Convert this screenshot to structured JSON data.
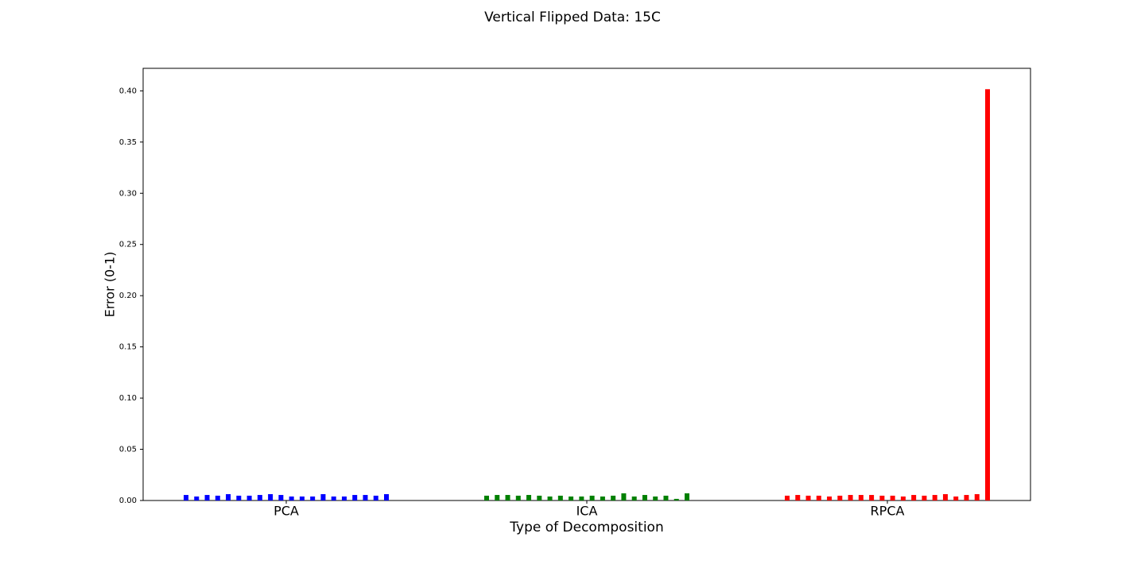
{
  "chart_data": {
    "type": "grouped_bar",
    "title": "Vertical Flipped Data: 15C",
    "xlabel": "Type of Decomposition",
    "ylabel": "Error (0-1)",
    "categories": [
      "PCA",
      "ICA",
      "RPCA"
    ],
    "groups": [
      {
        "color": "#0000ff",
        "values": [
          0.0054,
          0.0039,
          0.0054,
          0.0047,
          0.0062,
          0.0047,
          0.0047,
          0.0054,
          0.0062,
          0.0054,
          0.0039,
          0.0039,
          0.0039,
          0.0062,
          0.0039,
          0.0039,
          0.0054,
          0.0054,
          0.0047,
          0.0062
        ]
      },
      {
        "color": "#008000",
        "values": [
          0.0047,
          0.0054,
          0.0054,
          0.0047,
          0.0054,
          0.0047,
          0.0039,
          0.0047,
          0.0039,
          0.0039,
          0.0047,
          0.0039,
          0.0047,
          0.007,
          0.0039,
          0.0054,
          0.0039,
          0.0047,
          0.0016,
          0.007
        ]
      },
      {
        "color": "#ff0000",
        "values": [
          0.0047,
          0.0054,
          0.0047,
          0.0047,
          0.0039,
          0.0047,
          0.0054,
          0.0054,
          0.0054,
          0.0047,
          0.0047,
          0.0039,
          0.0054,
          0.0047,
          0.0054,
          0.0062,
          0.0039,
          0.0054,
          0.0062,
          0.4016
        ]
      }
    ],
    "ylim": [
      0,
      0.422
    ],
    "yticks": [
      {
        "value": 0,
        "label": "0.00"
      },
      {
        "value": 0.05,
        "label": "0.05"
      },
      {
        "value": 0.1,
        "label": "0.10"
      },
      {
        "value": 0.15,
        "label": "0.15"
      },
      {
        "value": 0.2,
        "label": "0.20"
      },
      {
        "value": 0.25,
        "label": "0.25"
      },
      {
        "value": 0.3,
        "label": "0.30"
      },
      {
        "value": 0.35,
        "label": "0.35"
      },
      {
        "value": 0.4,
        "label": "0.40"
      }
    ]
  }
}
